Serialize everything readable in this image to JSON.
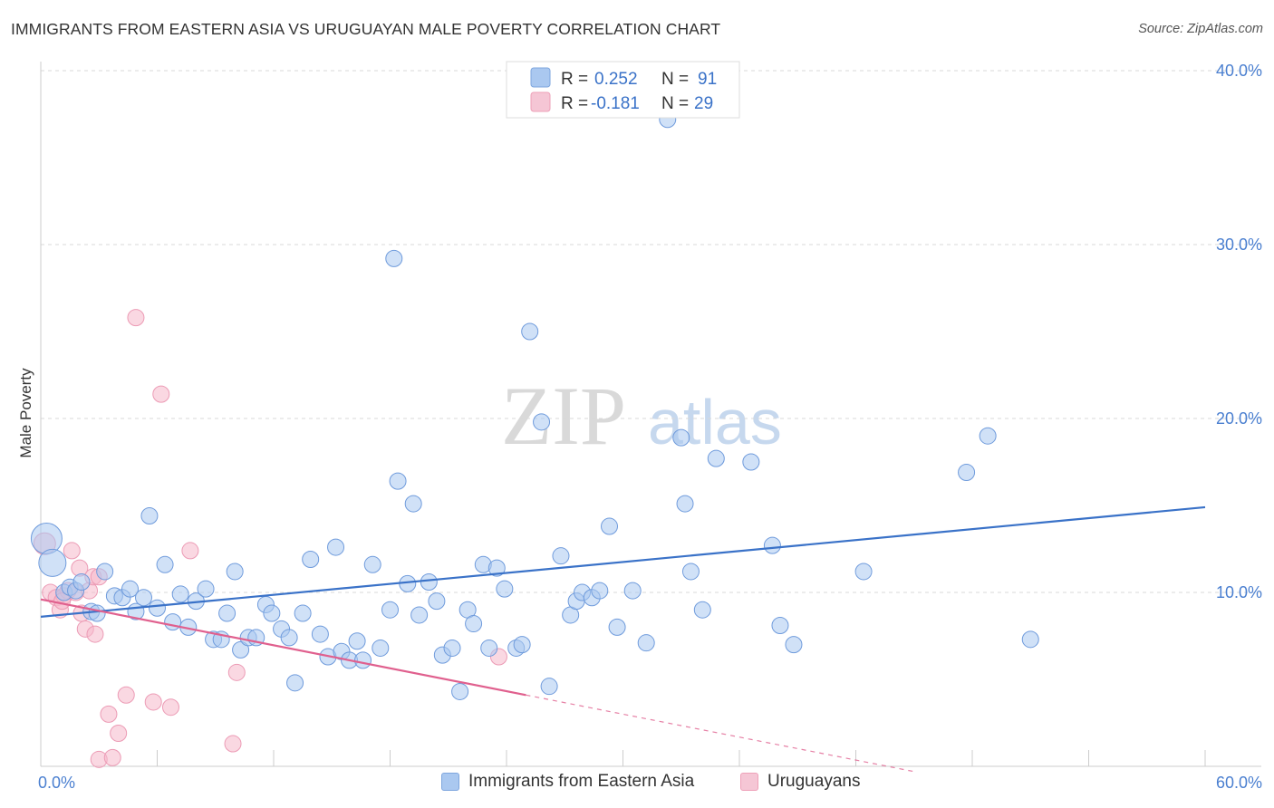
{
  "title": "IMMIGRANTS FROM EASTERN ASIA VS URUGUAYAN MALE POVERTY CORRELATION CHART",
  "source": "Source: ZipAtlas.com",
  "watermark": {
    "zip": "ZIP",
    "atlas": "atlas"
  },
  "colors": {
    "blue": "#3a72c8",
    "blue_fill": "#aac8f0",
    "pink": "#e0608e",
    "pink_fill": "#f5b8cb",
    "grid": "#d8d8d8",
    "tick_text": "#4a7fd0"
  },
  "legend": {
    "r_label": "R =",
    "n_label": "N =",
    "rows": [
      {
        "series": "blue",
        "r": "0.252",
        "n": "91"
      },
      {
        "series": "pink",
        "r": "-0.181",
        "n": "29"
      }
    ]
  },
  "chart_data": {
    "type": "scatter",
    "title": "IMMIGRANTS FROM EASTERN ASIA VS URUGUAYAN MALE POVERTY CORRELATION CHART",
    "xlabel": "",
    "ylabel": "Male Poverty",
    "xlim": [
      0,
      60
    ],
    "ylim": [
      0,
      40
    ],
    "x_tick_labels": [
      "0.0%",
      "60.0%"
    ],
    "y_ticks": [
      10,
      20,
      30,
      40
    ],
    "y_tick_labels": [
      "10.0%",
      "20.0%",
      "30.0%",
      "40.0%"
    ],
    "grid": true,
    "legend_position": "top-center",
    "series": [
      {
        "name": "Immigrants from Eastern Asia",
        "color": "blue",
        "trend": {
          "x": [
            0,
            60
          ],
          "y": [
            8.6,
            14.9
          ]
        },
        "points": [
          [
            0.3,
            13.1
          ],
          [
            0.6,
            11.7
          ],
          [
            1.2,
            10.0
          ],
          [
            1.5,
            10.3
          ],
          [
            1.8,
            10.1
          ],
          [
            2.1,
            10.6
          ],
          [
            2.6,
            8.9
          ],
          [
            2.9,
            8.8
          ],
          [
            3.3,
            11.2
          ],
          [
            3.8,
            9.8
          ],
          [
            4.2,
            9.7
          ],
          [
            4.6,
            10.2
          ],
          [
            4.9,
            8.9
          ],
          [
            5.3,
            9.7
          ],
          [
            5.6,
            14.4
          ],
          [
            6.0,
            9.1
          ],
          [
            6.4,
            11.6
          ],
          [
            6.8,
            8.3
          ],
          [
            7.2,
            9.9
          ],
          [
            7.6,
            8.0
          ],
          [
            8.0,
            9.5
          ],
          [
            8.5,
            10.2
          ],
          [
            8.9,
            7.3
          ],
          [
            9.3,
            7.3
          ],
          [
            9.6,
            8.8
          ],
          [
            10.0,
            11.2
          ],
          [
            10.3,
            6.7
          ],
          [
            10.7,
            7.4
          ],
          [
            11.1,
            7.4
          ],
          [
            11.6,
            9.3
          ],
          [
            11.9,
            8.8
          ],
          [
            12.4,
            7.9
          ],
          [
            12.8,
            7.4
          ],
          [
            13.1,
            4.8
          ],
          [
            13.5,
            8.8
          ],
          [
            13.9,
            11.9
          ],
          [
            14.4,
            7.6
          ],
          [
            14.8,
            6.3
          ],
          [
            15.2,
            12.6
          ],
          [
            15.5,
            6.6
          ],
          [
            15.9,
            6.1
          ],
          [
            16.3,
            7.2
          ],
          [
            16.6,
            6.1
          ],
          [
            17.1,
            11.6
          ],
          [
            17.5,
            6.8
          ],
          [
            18.0,
            9.0
          ],
          [
            18.4,
            16.4
          ],
          [
            18.9,
            10.5
          ],
          [
            19.2,
            15.1
          ],
          [
            19.5,
            8.7
          ],
          [
            20.0,
            10.6
          ],
          [
            20.4,
            9.5
          ],
          [
            20.7,
            6.4
          ],
          [
            21.2,
            6.8
          ],
          [
            21.6,
            4.3
          ],
          [
            22.0,
            9.0
          ],
          [
            22.3,
            8.2
          ],
          [
            22.8,
            11.6
          ],
          [
            23.1,
            6.8
          ],
          [
            23.5,
            11.4
          ],
          [
            23.9,
            10.2
          ],
          [
            24.5,
            6.8
          ],
          [
            24.8,
            7.0
          ],
          [
            25.2,
            25.0
          ],
          [
            25.8,
            19.8
          ],
          [
            26.2,
            4.6
          ],
          [
            26.8,
            12.1
          ],
          [
            27.3,
            8.7
          ],
          [
            27.6,
            9.5
          ],
          [
            27.9,
            10.0
          ],
          [
            28.4,
            9.7
          ],
          [
            28.8,
            10.1
          ],
          [
            29.3,
            13.8
          ],
          [
            29.7,
            8.0
          ],
          [
            30.5,
            10.1
          ],
          [
            31.2,
            7.1
          ],
          [
            32.3,
            37.2
          ],
          [
            33.0,
            18.9
          ],
          [
            33.2,
            15.1
          ],
          [
            33.5,
            11.2
          ],
          [
            34.1,
            9.0
          ],
          [
            34.8,
            17.7
          ],
          [
            36.6,
            17.5
          ],
          [
            37.7,
            12.7
          ],
          [
            38.1,
            8.1
          ],
          [
            38.8,
            7.0
          ],
          [
            42.4,
            11.2
          ],
          [
            47.7,
            16.9
          ],
          [
            48.8,
            19.0
          ],
          [
            51.0,
            7.3
          ],
          [
            18.2,
            29.2
          ]
        ]
      },
      {
        "name": "Uruguayans",
        "color": "pink",
        "trend": {
          "x": [
            0,
            25
          ],
          "y": [
            9.6,
            4.1
          ]
        },
        "trend_dashed": {
          "x": [
            25,
            45
          ],
          "y": [
            4.1,
            -0.3
          ]
        },
        "points": [
          [
            0.2,
            12.8
          ],
          [
            0.5,
            10.0
          ],
          [
            0.8,
            9.7
          ],
          [
            1.0,
            9.0
          ],
          [
            1.2,
            9.8
          ],
          [
            1.4,
            10.1
          ],
          [
            1.6,
            12.4
          ],
          [
            1.8,
            10.0
          ],
          [
            2.0,
            11.4
          ],
          [
            2.1,
            8.8
          ],
          [
            2.3,
            7.9
          ],
          [
            2.5,
            10.1
          ],
          [
            2.7,
            10.9
          ],
          [
            2.8,
            7.6
          ],
          [
            3.0,
            10.9
          ],
          [
            3.0,
            0.4
          ],
          [
            3.5,
            3.0
          ],
          [
            3.7,
            0.5
          ],
          [
            4.0,
            1.9
          ],
          [
            4.4,
            4.1
          ],
          [
            4.9,
            25.8
          ],
          [
            5.8,
            3.7
          ],
          [
            6.2,
            21.4
          ],
          [
            6.7,
            3.4
          ],
          [
            7.7,
            12.4
          ],
          [
            9.9,
            1.3
          ],
          [
            10.1,
            5.4
          ],
          [
            23.6,
            6.3
          ],
          [
            1.1,
            9.5
          ]
        ]
      }
    ]
  }
}
